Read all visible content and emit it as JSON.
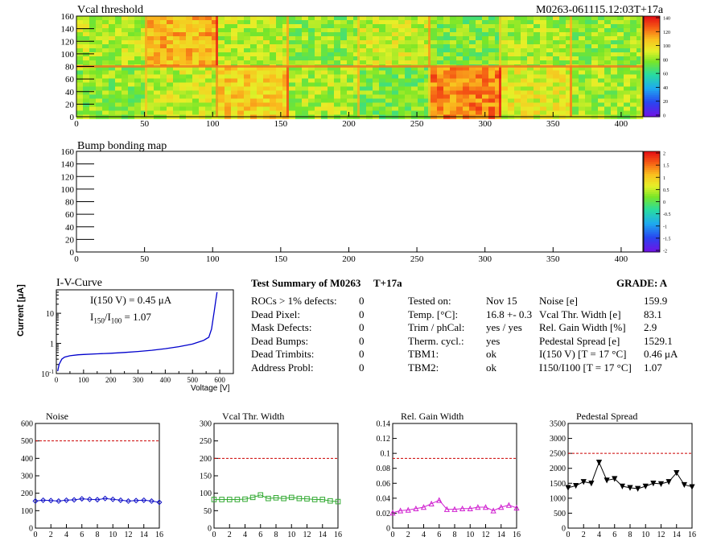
{
  "header": {
    "vcal_title": "Vcal threshold",
    "module_id": "M0263-061115.12:03T+17a",
    "bump_title": "Bump bonding map"
  },
  "heatmap_axes": {
    "y_ticks": [
      "0",
      "20",
      "40",
      "60",
      "80",
      "100",
      "120",
      "140",
      "160"
    ],
    "x_ticks": [
      "0",
      "50",
      "100",
      "150",
      "200",
      "250",
      "300",
      "350",
      "400"
    ]
  },
  "colorbars": {
    "vcal_ticks": [
      "0",
      "20",
      "40",
      "60",
      "80",
      "100",
      "120",
      "140"
    ],
    "bump_ticks": [
      "-2",
      "-1.5",
      "-1",
      "-0.5",
      "0",
      "0.5",
      "1",
      "1.5",
      "2"
    ]
  },
  "iv": {
    "title": "I-V-Curve",
    "ylabel": "Current [μA]",
    "xlabel": "Voltage [V]",
    "annot1": "I(150 V) = 0.45 μA",
    "annot2_main": "I",
    "annot2_sub1": "150",
    "annot2_mid": "/I",
    "annot2_sub2": "100",
    "annot2_val": "=  1.07",
    "x_ticks": [
      "0",
      "100",
      "200",
      "300",
      "400",
      "500",
      "600"
    ],
    "y_ticks": [
      "10-1",
      "1",
      "10"
    ]
  },
  "summary": {
    "title": "Test Summary of M0263",
    "tag": "T+17a",
    "grade": "GRADE:  A",
    "col1": [
      {
        "label": "ROCs > 1% defects:",
        "value": "0"
      },
      {
        "label": "Dead Pixel:",
        "value": "0"
      },
      {
        "label": "Mask Defects:",
        "value": "0"
      },
      {
        "label": "Dead Bumps:",
        "value": "0"
      },
      {
        "label": "Dead Trimbits:",
        "value": "0"
      },
      {
        "label": "Address Probl:",
        "value": "0"
      }
    ],
    "col2": [
      {
        "label": "Tested on:",
        "value": "Nov 15"
      },
      {
        "label": "Temp. [°C]:",
        "value": "16.8 +- 0.3"
      },
      {
        "label": "Trim / phCal:",
        "value": "yes / yes"
      },
      {
        "label": "Therm. cycl.:",
        "value": "yes"
      },
      {
        "label": "TBM1:",
        "value": "ok"
      },
      {
        "label": "TBM2:",
        "value": "ok"
      }
    ],
    "col3": [
      {
        "label": "Noise [e]",
        "value": "159.9"
      },
      {
        "label": "Vcal Thr. Width [e]",
        "value": "83.1"
      },
      {
        "label": "Rel. Gain Width [%]",
        "value": "2.9"
      },
      {
        "label": "Pedestal Spread [e]",
        "value": "1529.1"
      },
      {
        "label": "I(150 V) [T = 17 °C]",
        "value": "0.46 μA"
      },
      {
        "label": "I150/I100  [T = 17 °C]",
        "value": "1.07"
      }
    ]
  },
  "chart_data": [
    {
      "type": "heatmap",
      "title": "Vcal threshold",
      "xlim": [
        0,
        416
      ],
      "ylim": [
        0,
        160
      ],
      "zlim": [
        0,
        150
      ],
      "roc_columns": [
        0,
        52,
        104,
        156,
        208,
        260,
        312,
        364,
        416
      ],
      "top_row_means": [
        92,
        118,
        92,
        85,
        95,
        82,
        90,
        85
      ],
      "bottom_row_means": [
        85,
        95,
        110,
        90,
        82,
        128,
        100,
        88
      ]
    },
    {
      "type": "heatmap",
      "title": "Bump bonding map",
      "xlim": [
        0,
        416
      ],
      "ylim": [
        0,
        160
      ],
      "zlim": [
        -2,
        2
      ],
      "values": []
    },
    {
      "type": "line",
      "title": "I-V-Curve",
      "xlabel": "Voltage [V]",
      "ylabel": "Current [μA]",
      "xlim": [
        0,
        650
      ],
      "ylim": [
        0.1,
        60
      ],
      "yscale": "log",
      "x": [
        5,
        10,
        20,
        30,
        50,
        80,
        100,
        150,
        200,
        250,
        300,
        350,
        400,
        450,
        500,
        540,
        560,
        570,
        575,
        580,
        585,
        590
      ],
      "y": [
        0.12,
        0.2,
        0.3,
        0.35,
        0.39,
        0.42,
        0.43,
        0.45,
        0.47,
        0.5,
        0.54,
        0.59,
        0.67,
        0.78,
        0.95,
        1.25,
        1.6,
        3.0,
        6.0,
        12,
        25,
        50
      ]
    },
    {
      "type": "line",
      "title": "Noise",
      "xlim": [
        0,
        16
      ],
      "ylim": [
        0,
        600
      ],
      "x": [
        0,
        1,
        2,
        3,
        4,
        5,
        6,
        7,
        8,
        9,
        10,
        11,
        12,
        13,
        14,
        15,
        16
      ],
      "y": [
        155,
        160,
        158,
        155,
        160,
        162,
        168,
        165,
        163,
        170,
        165,
        160,
        155,
        158,
        160,
        155,
        148
      ],
      "threshold": 500,
      "color": "#1010c8",
      "marker": "diamond",
      "yticks": [
        "0",
        "100",
        "200",
        "300",
        "400",
        "500",
        "600"
      ],
      "xticks": [
        "0",
        "2",
        "4",
        "6",
        "8",
        "10",
        "12",
        "14",
        "16"
      ]
    },
    {
      "type": "line",
      "title": "Vcal Thr. Width",
      "xlim": [
        0,
        16
      ],
      "ylim": [
        0,
        300
      ],
      "x": [
        0,
        1,
        2,
        3,
        4,
        5,
        6,
        7,
        8,
        9,
        10,
        11,
        12,
        13,
        14,
        15,
        16
      ],
      "y": [
        82,
        82,
        82,
        82,
        83,
        88,
        95,
        85,
        87,
        85,
        88,
        85,
        84,
        82,
        82,
        78,
        76
      ],
      "threshold": 200,
      "color": "#33aa33",
      "marker": "square",
      "yticks": [
        "0",
        "50",
        "100",
        "150",
        "200",
        "250",
        "300"
      ],
      "xticks": [
        "0",
        "2",
        "4",
        "6",
        "8",
        "10",
        "12",
        "14",
        "16"
      ]
    },
    {
      "type": "line",
      "title": "Rel. Gain Width",
      "xlim": [
        0,
        16
      ],
      "ylim": [
        0,
        0.15
      ],
      "x": [
        0,
        1,
        2,
        3,
        4,
        5,
        6,
        7,
        8,
        9,
        10,
        11,
        12,
        13,
        14,
        15,
        16
      ],
      "y": [
        0.022,
        0.025,
        0.026,
        0.028,
        0.03,
        0.035,
        0.04,
        0.027,
        0.027,
        0.028,
        0.028,
        0.03,
        0.03,
        0.025,
        0.03,
        0.033,
        0.029
      ],
      "threshold": 0.1,
      "color": "#d020d0",
      "marker": "triangle-up",
      "yticks": [
        "0",
        "0.02",
        "0.04",
        "0.06",
        "0.08",
        "0.1",
        "0.12",
        "0.14"
      ],
      "xticks": [
        "0",
        "2",
        "4",
        "6",
        "8",
        "10",
        "12",
        "14",
        "16"
      ]
    },
    {
      "type": "line",
      "title": "Pedestal Spread",
      "xlim": [
        0,
        16
      ],
      "ylim": [
        0,
        3500
      ],
      "x": [
        0,
        1,
        2,
        3,
        4,
        5,
        6,
        7,
        8,
        9,
        10,
        11,
        12,
        13,
        14,
        15,
        16
      ],
      "y": [
        1350,
        1420,
        1550,
        1500,
        2200,
        1600,
        1650,
        1400,
        1350,
        1320,
        1400,
        1500,
        1480,
        1550,
        1850,
        1450,
        1380
      ],
      "threshold": 2500,
      "color": "#000000",
      "marker": "triangle-down",
      "yticks": [
        "0",
        "500",
        "1000",
        "1500",
        "2000",
        "2500",
        "3000",
        "3500"
      ],
      "xticks": [
        "0",
        "2",
        "4",
        "6",
        "8",
        "10",
        "12",
        "14",
        "16"
      ]
    }
  ]
}
